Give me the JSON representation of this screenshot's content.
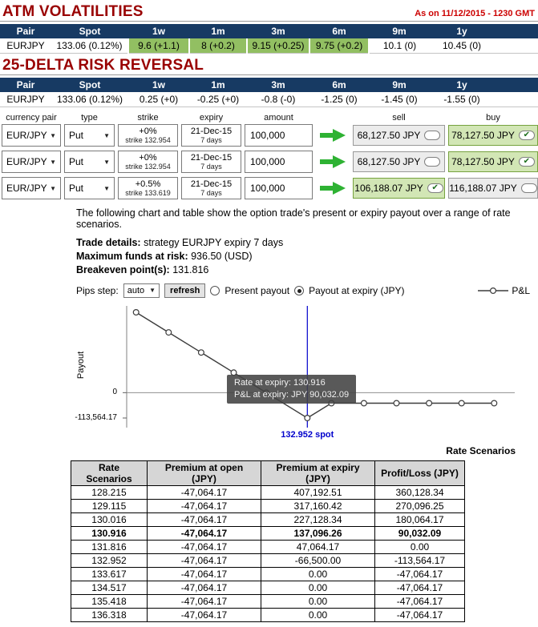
{
  "meta": {
    "as_on": "As on 11/12/2015 - 1230 GMT"
  },
  "colors": {
    "header_navy": "#173a63",
    "highlight_green": "#92bf62",
    "selected_green_bg": "#d2e6b5",
    "selected_green_border": "#76a23e",
    "arrow_green": "#2eb233",
    "title_red": "#990000",
    "date_red": "#cc0000",
    "spot_blue": "#0000cc"
  },
  "atm": {
    "title": "ATM VOLATILITIES",
    "headers": [
      "Pair",
      "Spot",
      "1w",
      "1m",
      "3m",
      "6m",
      "9m",
      "1y"
    ],
    "row": {
      "pair": "EURJPY",
      "spot": "133.06 (0.12%)",
      "values": [
        {
          "text": "9.6 (+1.1)",
          "highlight": true
        },
        {
          "text": "8 (+0.2)",
          "highlight": true
        },
        {
          "text": "9.15 (+0.25)",
          "highlight": true
        },
        {
          "text": "9.75 (+0.2)",
          "highlight": true
        },
        {
          "text": "10.1 (0)",
          "highlight": false
        },
        {
          "text": "10.45 (0)",
          "highlight": false
        }
      ]
    }
  },
  "rr": {
    "title": "25-DELTA RISK REVERSAL",
    "headers": [
      "Pair",
      "Spot",
      "1w",
      "1m",
      "3m",
      "6m",
      "9m",
      "1y"
    ],
    "row": {
      "pair": "EURJPY",
      "spot": "133.06 (0.12%)",
      "values": [
        {
          "text": "0.25 (+0)",
          "highlight": false
        },
        {
          "text": "-0.25 (+0)",
          "highlight": false
        },
        {
          "text": "-0.8 (-0)",
          "highlight": false
        },
        {
          "text": "-1.25 (0)",
          "highlight": false
        },
        {
          "text": "-1.45 (0)",
          "highlight": false
        },
        {
          "text": "-1.55 (0)",
          "highlight": false
        }
      ]
    }
  },
  "builder": {
    "headers": [
      "currency pair",
      "type",
      "strike",
      "expiry",
      "amount",
      "sell",
      "buy"
    ],
    "rows": [
      {
        "pair": "EUR/JPY",
        "type": "Put",
        "strike_line1": "+0%",
        "strike_line2": "strike 132.954",
        "expiry_line1": "21-Dec-15",
        "expiry_line2": "7 days",
        "amount": "100,000",
        "sell": {
          "label": "68,127.50 JPY",
          "selected": false
        },
        "buy": {
          "label": "78,127.50 JPY",
          "selected": true
        }
      },
      {
        "pair": "EUR/JPY",
        "type": "Put",
        "strike_line1": "+0%",
        "strike_line2": "strike 132.954",
        "expiry_line1": "21-Dec-15",
        "expiry_line2": "7 days",
        "amount": "100,000",
        "sell": {
          "label": "68,127.50 JPY",
          "selected": false
        },
        "buy": {
          "label": "78,127.50 JPY",
          "selected": true
        }
      },
      {
        "pair": "EUR/JPY",
        "type": "Put",
        "strike_line1": "+0.5%",
        "strike_line2": "strike 133.619",
        "expiry_line1": "21-Dec-15",
        "expiry_line2": "7 days",
        "amount": "100,000",
        "sell": {
          "label": "106,188.07 JPY",
          "selected": true
        },
        "buy": {
          "label": "116,188.07 JPY",
          "selected": false
        }
      }
    ]
  },
  "description": "The following chart and table show the option trade's present or expiry payout over a range of rate scenarios.",
  "trade_details": {
    "line1_label": "Trade details:",
    "line1_value": "strategy EURJPY expiry 7 days",
    "line2_label": "Maximum funds at risk:",
    "line2_value": "936.50 (USD)",
    "line3_label": "Breakeven point(s):",
    "line3_value": "131.816"
  },
  "controls": {
    "pips_label": "Pips step:",
    "pips_value": "auto",
    "refresh_label": "refresh",
    "radio1": "Present payout",
    "radio2": "Payout at expiry (JPY)"
  },
  "chart_data": {
    "type": "line",
    "xlabel": "Rate Scenarios",
    "ylabel": "Payout",
    "xlim": [
      128.0,
      138.6
    ],
    "ylim": [
      -113564.17,
      360128.34
    ],
    "y_ticks": [
      "0",
      "-113,564.17"
    ],
    "legend": [
      "P&L"
    ],
    "series": [
      {
        "name": "P&L",
        "x": [
          128.215,
          129.115,
          130.016,
          130.916,
          131.816,
          132.952,
          133.617,
          134.517,
          135.418,
          136.318,
          137.218,
          138.118
        ],
        "y": [
          360128.34,
          270096.25,
          180064.17,
          90032.09,
          0.0,
          -113564.17,
          -47064.17,
          -47064.17,
          -47064.17,
          -47064.17,
          -47064.17,
          -47064.17
        ]
      }
    ],
    "spot_line": {
      "x": 132.952,
      "label": "132.952 spot",
      "color": "#0000cc"
    },
    "tooltip": {
      "line1": "Rate at expiry: 130.916",
      "line2": "P&L at expiry: JPY 90,032.09"
    }
  },
  "scenarios_table": {
    "headers": [
      "Rate Scenarios",
      "Premium at open (JPY)",
      "Premium at expiry (JPY)",
      "Profit/Loss (JPY)"
    ],
    "bold_row_index": 3,
    "rows": [
      [
        "128.215",
        "-47,064.17",
        "407,192.51",
        "360,128.34"
      ],
      [
        "129.115",
        "-47,064.17",
        "317,160.42",
        "270,096.25"
      ],
      [
        "130.016",
        "-47,064.17",
        "227,128.34",
        "180,064.17"
      ],
      [
        "130.916",
        "-47,064.17",
        "137,096.26",
        "90,032.09"
      ],
      [
        "131.816",
        "-47,064.17",
        "47,064.17",
        "0.00"
      ],
      [
        "132.952",
        "-47,064.17",
        "-66,500.00",
        "-113,564.17"
      ],
      [
        "133.617",
        "-47,064.17",
        "0.00",
        "-47,064.17"
      ],
      [
        "134.517",
        "-47,064.17",
        "0.00",
        "-47,064.17"
      ],
      [
        "135.418",
        "-47,064.17",
        "0.00",
        "-47,064.17"
      ],
      [
        "136.318",
        "-47,064.17",
        "0.00",
        "-47,064.17"
      ]
    ]
  }
}
